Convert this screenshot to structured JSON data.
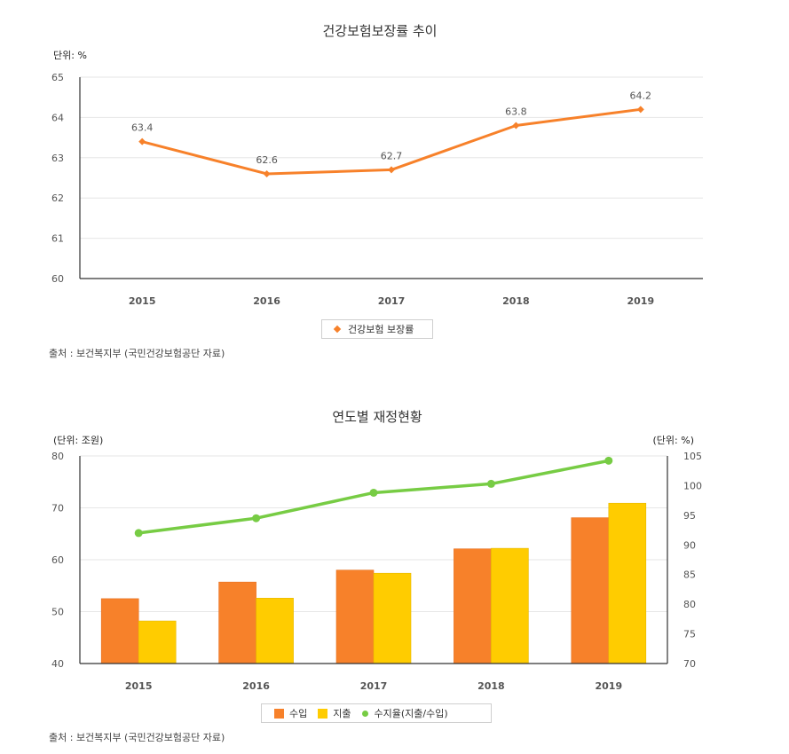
{
  "chart_data": [
    {
      "type": "line",
      "title": "건강보험보장률 추이",
      "unit_label": "단위: %",
      "categories": [
        "2015",
        "2016",
        "2017",
        "2018",
        "2019"
      ],
      "series": [
        {
          "name": "건강보험 보장률",
          "values": [
            63.4,
            62.6,
            62.7,
            63.8,
            64.2
          ],
          "color": "#f7812a"
        }
      ],
      "ylim": [
        60,
        65
      ],
      "yticks": [
        60,
        61,
        62,
        63,
        64,
        65
      ],
      "grid": true,
      "legend": "bottom-center",
      "source": "출처 : 보건복지부 (국민건강보험공단 자료)"
    },
    {
      "type": "bar",
      "title": "연도별 재정현황",
      "unit_label_left": "(단위: 조원)",
      "unit_label_right": "(단위: %)",
      "categories": [
        "2015",
        "2016",
        "2017",
        "2018",
        "2019"
      ],
      "series": [
        {
          "name": "수입",
          "type": "bar",
          "axis": "left",
          "values": [
            52.5,
            55.7,
            58.0,
            62.1,
            68.1
          ],
          "color": "#f7812a"
        },
        {
          "name": "지출",
          "type": "bar",
          "axis": "left",
          "values": [
            48.2,
            52.6,
            57.4,
            62.2,
            70.9
          ],
          "color": "#ffcc00"
        },
        {
          "name": "수지율(지출/수입)",
          "type": "line",
          "axis": "right",
          "values": [
            92.0,
            94.5,
            98.8,
            100.3,
            104.2
          ],
          "color": "#77cc44"
        }
      ],
      "ylim_left": [
        40,
        80
      ],
      "yticks_left": [
        40,
        50,
        60,
        70,
        80
      ],
      "ylim_right": [
        70,
        105
      ],
      "yticks_right": [
        70,
        75,
        80,
        85,
        90,
        95,
        100,
        105
      ],
      "grid": true,
      "legend": "bottom-center",
      "source": "출처 : 보건복지부 (국민건강보험공단 자료)"
    }
  ]
}
